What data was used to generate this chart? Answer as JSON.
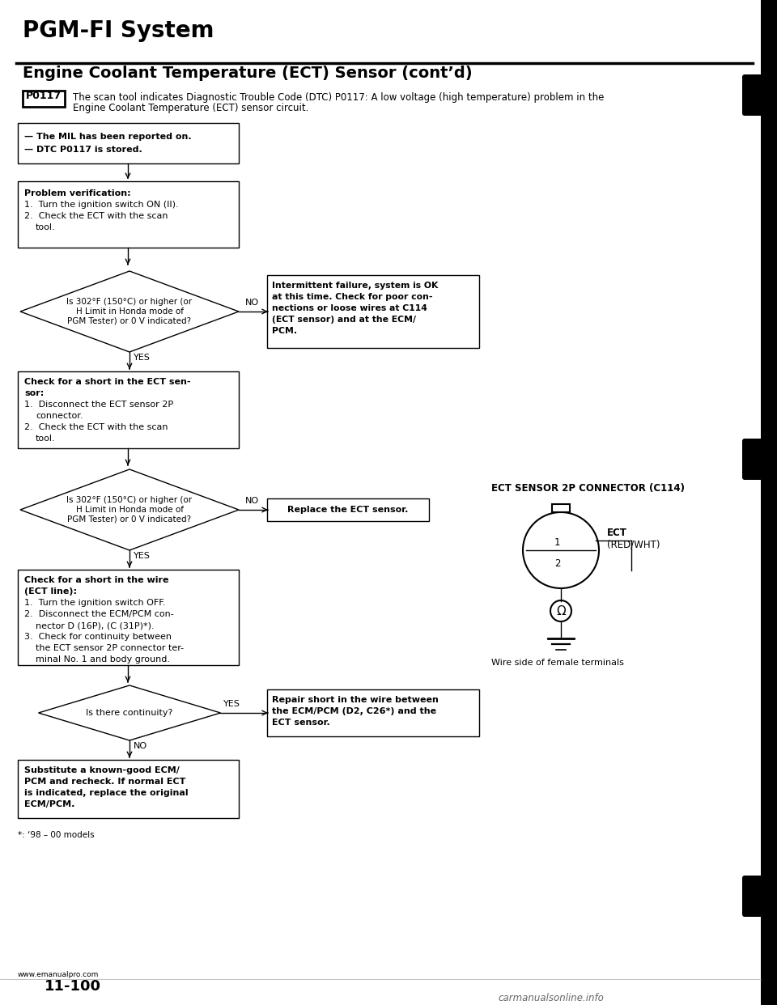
{
  "page_title": "PGM-FI System",
  "section_title": "Engine Coolant Temperature (ECT) Sensor (cont’d)",
  "dtc_code": "P0117",
  "dtc_text_line1": "The scan tool indicates Diagnostic Trouble Code (DTC) P0117: A low voltage (high temperature) problem in the",
  "dtc_text_line2": "Engine Coolant Temperature (ECT) sensor circuit.",
  "bg_color": "#ffffff",
  "footnote": "*: ‘98 – 00 models",
  "website": "www.emanualpro.com",
  "page_number": "11-100",
  "bottom_logo": "carmanualsonline.info",
  "connector_title": "ECT SENSOR 2P CONNECTOR (C114)",
  "wire_label": "Wire side of female terminals"
}
